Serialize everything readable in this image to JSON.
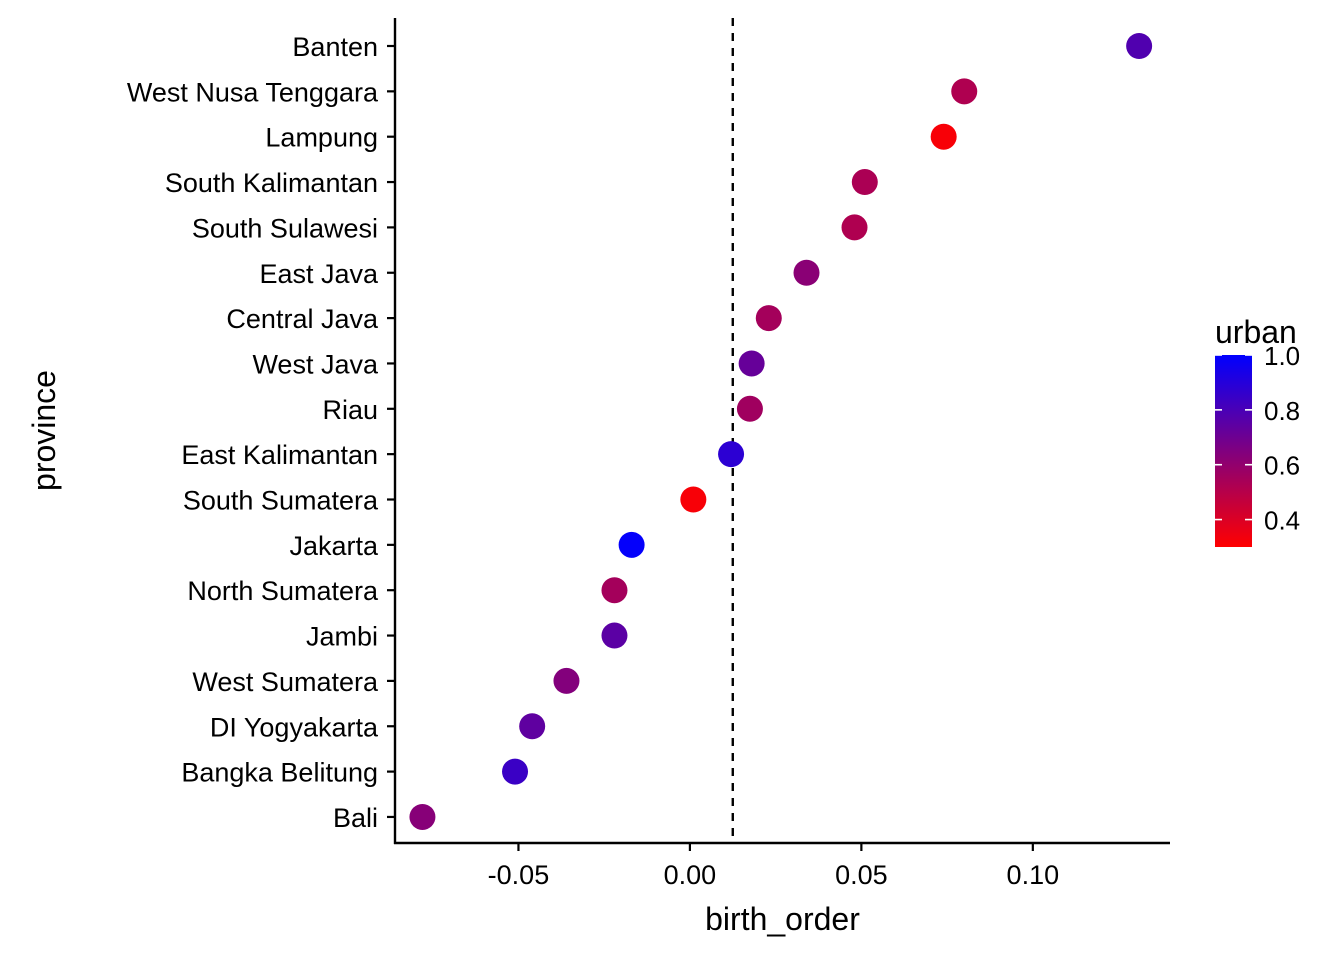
{
  "chart_data": {
    "type": "scatter",
    "xlabel": "birth_order",
    "ylabel": "province",
    "xlim": [
      -0.086,
      0.14
    ],
    "x_ticks": [
      {
        "value": -0.05,
        "label": "-0.05"
      },
      {
        "value": 0.0,
        "label": "0.00"
      },
      {
        "value": 0.05,
        "label": "0.05"
      },
      {
        "value": 0.1,
        "label": "0.10"
      }
    ],
    "reference_line": {
      "x": 0.0125,
      "style": "dashed"
    },
    "grid": false,
    "color_scale": {
      "title": "urban",
      "min": 0.3,
      "max": 1.0,
      "low_color": "#ff0000",
      "high_color": "#0000ff",
      "ticks": [
        {
          "value": 0.4,
          "label": "0.4"
        },
        {
          "value": 0.6,
          "label": "0.6"
        },
        {
          "value": 0.8,
          "label": "0.8"
        },
        {
          "value": 1.0,
          "label": "1.0"
        }
      ],
      "legend_position": "right"
    },
    "points": [
      {
        "province": "Banten",
        "x": 0.131,
        "urban": 0.78
      },
      {
        "province": "West Nusa Tenggara",
        "x": 0.08,
        "urban": 0.52
      },
      {
        "province": "Lampung",
        "x": 0.074,
        "urban": 0.32
      },
      {
        "province": "South Kalimantan",
        "x": 0.051,
        "urban": 0.53
      },
      {
        "province": "South Sulawesi",
        "x": 0.048,
        "urban": 0.52
      },
      {
        "province": "East Java",
        "x": 0.034,
        "urban": 0.62
      },
      {
        "province": "Central Java",
        "x": 0.023,
        "urban": 0.55
      },
      {
        "province": "West Java",
        "x": 0.018,
        "urban": 0.72
      },
      {
        "province": "Riau",
        "x": 0.0175,
        "urban": 0.56
      },
      {
        "province": "East Kalimantan",
        "x": 0.012,
        "urban": 0.88
      },
      {
        "province": "South Sumatera",
        "x": 0.001,
        "urban": 0.32
      },
      {
        "province": "Jakarta",
        "x": -0.017,
        "urban": 0.99
      },
      {
        "province": "North Sumatera",
        "x": -0.022,
        "urban": 0.55
      },
      {
        "province": "Jambi",
        "x": -0.022,
        "urban": 0.75
      },
      {
        "province": "West Sumatera",
        "x": -0.036,
        "urban": 0.64
      },
      {
        "province": "DI Yogyakarta",
        "x": -0.046,
        "urban": 0.74
      },
      {
        "province": "Bangka Belitung",
        "x": -0.051,
        "urban": 0.84
      },
      {
        "province": "Bali",
        "x": -0.078,
        "urban": 0.63
      }
    ]
  }
}
